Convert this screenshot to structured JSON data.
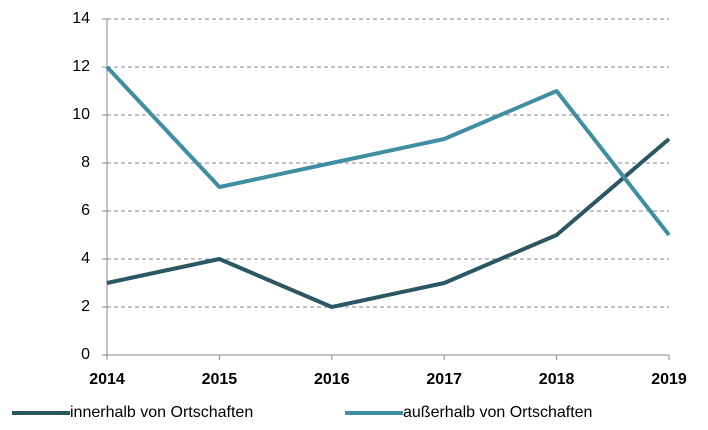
{
  "chart_data": {
    "type": "line",
    "categories": [
      "2014",
      "2015",
      "2016",
      "2017",
      "2018",
      "2019"
    ],
    "series": [
      {
        "name": "innerhalb von Ortschaften",
        "color": "#2b5763",
        "values": [
          3,
          4,
          2,
          3,
          5,
          9
        ]
      },
      {
        "name": "außerhalb von Ortschaften",
        "color": "#3f8ea2",
        "values": [
          12,
          7,
          8,
          9,
          11,
          5
        ]
      }
    ],
    "ylim": [
      0,
      14
    ],
    "yticks": [
      0,
      2,
      4,
      6,
      8,
      10,
      12,
      14
    ],
    "grid": true,
    "legend": "bottom"
  }
}
